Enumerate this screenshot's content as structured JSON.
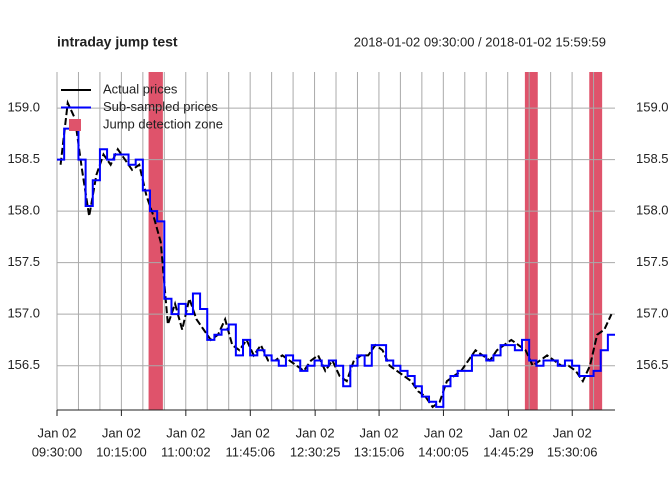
{
  "chart_data": {
    "type": "step-line",
    "title": "intraday jump test",
    "subtitle": "2018-01-02 09:30:00 / 2018-01-02 15:59:59",
    "xlim": [
      "09:30:00",
      "15:59:59"
    ],
    "xtick_date": "Jan 02",
    "xticks": [
      "09:30:00",
      "10:15:00",
      "11:00:02",
      "11:45:06",
      "12:30:25",
      "13:15:06",
      "14:00:05",
      "14:45:29",
      "15:30:06"
    ],
    "xgrid": [
      "09:30:00",
      "09:45:00",
      "10:00:00",
      "10:15:00",
      "10:30:00",
      "10:45:00",
      "11:00:00",
      "11:15:00",
      "11:30:00",
      "11:45:00",
      "12:00:00",
      "12:15:00",
      "12:30:00",
      "12:45:00",
      "13:00:00",
      "13:15:00",
      "13:30:00",
      "13:45:00",
      "14:00:00",
      "14:15:00",
      "14:30:00",
      "14:45:00",
      "15:00:00",
      "15:15:00",
      "15:30:00",
      "15:45:00"
    ],
    "ylim": [
      156.07,
      159.35
    ],
    "yticks": [
      {
        "value": 156.5,
        "label": "156.5"
      },
      {
        "value": 157,
        "label": "157.0"
      },
      {
        "value": 157.5,
        "label": "157.5"
      },
      {
        "value": 158,
        "label": "158.0"
      },
      {
        "value": 158.5,
        "label": "158.5"
      },
      {
        "value": 159,
        "label": "159.0"
      }
    ],
    "grid": true,
    "legend": "top-left",
    "series": [
      {
        "name": "Actual prices",
        "color": "#000000",
        "style": "dashed",
        "x": [
          "09:32:30",
          "09:37:30",
          "09:42:30",
          "09:47:30",
          "09:52:30",
          "09:57:30",
          "10:02:30",
          "10:07:30",
          "10:12:30",
          "10:17:30",
          "10:22:30",
          "10:27:30",
          "10:32:30",
          "10:37:30",
          "10:42:30",
          "10:47:30",
          "10:52:30",
          "10:57:30",
          "11:02:30",
          "11:07:30",
          "11:12:30",
          "11:17:30",
          "11:22:30",
          "11:27:30",
          "11:32:30",
          "11:37:30",
          "11:42:30",
          "11:47:30",
          "11:52:30",
          "11:57:30",
          "12:02:30",
          "12:07:30",
          "12:12:30",
          "12:17:30",
          "12:22:30",
          "12:27:30",
          "12:32:30",
          "12:37:30",
          "12:42:30",
          "12:47:30",
          "12:52:30",
          "12:57:30",
          "13:02:30",
          "13:07:30",
          "13:12:30",
          "13:17:30",
          "13:22:30",
          "13:27:30",
          "13:32:30",
          "13:37:30",
          "13:42:30",
          "13:47:30",
          "13:52:30",
          "13:57:30",
          "14:02:30",
          "14:07:30",
          "14:12:30",
          "14:17:30",
          "14:22:30",
          "14:27:30",
          "14:32:30",
          "14:37:30",
          "14:42:30",
          "14:47:30",
          "14:52:30",
          "14:57:30",
          "15:02:30",
          "15:07:30",
          "15:12:30",
          "15:17:30",
          "15:22:30",
          "15:27:30",
          "15:32:30",
          "15:37:30",
          "15:42:30",
          "15:47:30",
          "15:52:30",
          "15:57:30"
        ],
        "values": [
          158.45,
          159.05,
          158.9,
          158.4,
          157.95,
          158.35,
          158.55,
          158.45,
          158.6,
          158.5,
          158.4,
          158.45,
          158.15,
          157.95,
          157.7,
          156.9,
          157.1,
          156.85,
          157.15,
          156.95,
          156.85,
          156.75,
          156.8,
          156.95,
          156.7,
          156.65,
          156.75,
          156.6,
          156.7,
          156.55,
          156.55,
          156.6,
          156.55,
          156.5,
          156.45,
          156.55,
          156.6,
          156.45,
          156.55,
          156.4,
          156.35,
          156.55,
          156.6,
          156.6,
          156.7,
          156.65,
          156.5,
          156.45,
          156.4,
          156.35,
          156.25,
          156.2,
          156.1,
          156.15,
          156.35,
          156.4,
          156.45,
          156.55,
          156.65,
          156.6,
          156.55,
          156.65,
          156.7,
          156.75,
          156.7,
          156.65,
          156.5,
          156.55,
          156.6,
          156.55,
          156.5,
          156.5,
          156.45,
          156.35,
          156.5,
          156.8,
          156.85,
          157.0
        ]
      },
      {
        "name": "Sub-sampled prices",
        "color": "#0000ff",
        "style": "step",
        "x": [
          "09:30:00",
          "09:35:00",
          "09:40:00",
          "09:45:00",
          "09:50:00",
          "09:55:00",
          "10:00:00",
          "10:05:00",
          "10:10:00",
          "10:15:00",
          "10:20:00",
          "10:25:00",
          "10:30:00",
          "10:35:00",
          "10:40:00",
          "10:45:00",
          "10:50:00",
          "10:55:00",
          "11:00:00",
          "11:05:00",
          "11:10:00",
          "11:15:00",
          "11:20:00",
          "11:25:00",
          "11:30:00",
          "11:35:00",
          "11:40:00",
          "11:45:00",
          "11:50:00",
          "11:55:00",
          "12:00:00",
          "12:05:00",
          "12:10:00",
          "12:15:00",
          "12:20:00",
          "12:25:00",
          "12:30:00",
          "12:35:00",
          "12:40:00",
          "12:45:00",
          "12:50:00",
          "12:55:00",
          "13:00:00",
          "13:05:00",
          "13:10:00",
          "13:15:00",
          "13:20:00",
          "13:25:00",
          "13:30:00",
          "13:35:00",
          "13:40:00",
          "13:45:00",
          "13:50:00",
          "13:55:00",
          "14:00:00",
          "14:05:00",
          "14:10:00",
          "14:15:00",
          "14:20:00",
          "14:25:00",
          "14:30:00",
          "14:35:00",
          "14:40:00",
          "14:45:00",
          "14:50:00",
          "14:55:00",
          "15:00:00",
          "15:05:00",
          "15:10:00",
          "15:15:00",
          "15:20:00",
          "15:25:00",
          "15:30:00",
          "15:35:00",
          "15:40:00",
          "15:45:00",
          "15:50:00",
          "15:55:00"
        ],
        "values": [
          158.5,
          158.8,
          158.8,
          158.5,
          158.05,
          158.3,
          158.6,
          158.5,
          158.55,
          158.55,
          158.45,
          158.5,
          158.2,
          158.0,
          157.9,
          157.15,
          157.0,
          157.1,
          157.0,
          157.2,
          157.05,
          156.75,
          156.8,
          156.85,
          156.9,
          156.6,
          156.75,
          156.6,
          156.65,
          156.6,
          156.55,
          156.5,
          156.6,
          156.55,
          156.45,
          156.5,
          156.55,
          156.5,
          156.55,
          156.5,
          156.3,
          156.5,
          156.6,
          156.5,
          156.7,
          156.7,
          156.55,
          156.5,
          156.45,
          156.4,
          156.3,
          156.2,
          156.15,
          156.1,
          156.3,
          156.4,
          156.45,
          156.45,
          156.6,
          156.6,
          156.55,
          156.6,
          156.7,
          156.7,
          156.65,
          156.75,
          156.55,
          156.5,
          156.55,
          156.55,
          156.5,
          156.55,
          156.5,
          156.4,
          156.4,
          156.45,
          156.65,
          156.8
        ]
      }
    ],
    "zones": {
      "name": "Jump detection zone",
      "color": "#df536b",
      "start": [
        "10:34:00",
        "14:57:00",
        "15:42:00"
      ],
      "end": [
        "10:44:00",
        "15:06:00",
        "15:51:00"
      ]
    }
  }
}
